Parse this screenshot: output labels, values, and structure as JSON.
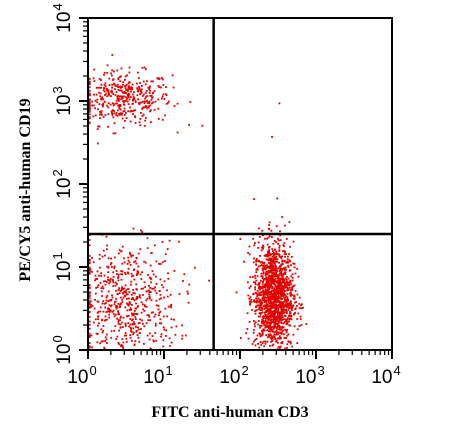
{
  "chart_data": {
    "type": "scatter",
    "title": "",
    "xlabel": "FITC anti-human CD3",
    "ylabel": "PE/CY5 anti-human CD19",
    "x_scale": "log",
    "y_scale": "log",
    "xlim": [
      1,
      10000
    ],
    "ylim": [
      1,
      10000
    ],
    "x_ticks": [
      {
        "base": "10",
        "exp": "0"
      },
      {
        "base": "10",
        "exp": "1"
      },
      {
        "base": "10",
        "exp": "2"
      },
      {
        "base": "10",
        "exp": "3"
      },
      {
        "base": "10",
        "exp": "4"
      }
    ],
    "y_ticks": [
      {
        "base": "10",
        "exp": "0"
      },
      {
        "base": "10",
        "exp": "1"
      },
      {
        "base": "10",
        "exp": "2"
      },
      {
        "base": "10",
        "exp": "3"
      },
      {
        "base": "10",
        "exp": "4"
      }
    ],
    "quadrant_gates": {
      "x": 45,
      "y": 25
    },
    "point_color": "#e00000",
    "grid": false,
    "legend": "none",
    "populations": [
      {
        "region": "upper-left",
        "x_center": 2.8,
        "y_center": 1100,
        "x_spread_decades": 0.32,
        "y_spread_decades": 0.16,
        "count": 420
      },
      {
        "region": "lower-left",
        "x_center": 3.0,
        "y_center": 3.5,
        "x_spread_decades": 0.35,
        "y_spread_decades": 0.38,
        "count": 650
      },
      {
        "region": "lower-right",
        "x_center": 270,
        "y_center": 4.5,
        "x_spread_decades": 0.13,
        "y_spread_decades": 0.33,
        "count": 1500
      },
      {
        "region": "upper-right",
        "x_center": 200,
        "y_center": 500,
        "x_spread_decades": 0.6,
        "y_spread_decades": 0.6,
        "count": 4
      }
    ]
  }
}
